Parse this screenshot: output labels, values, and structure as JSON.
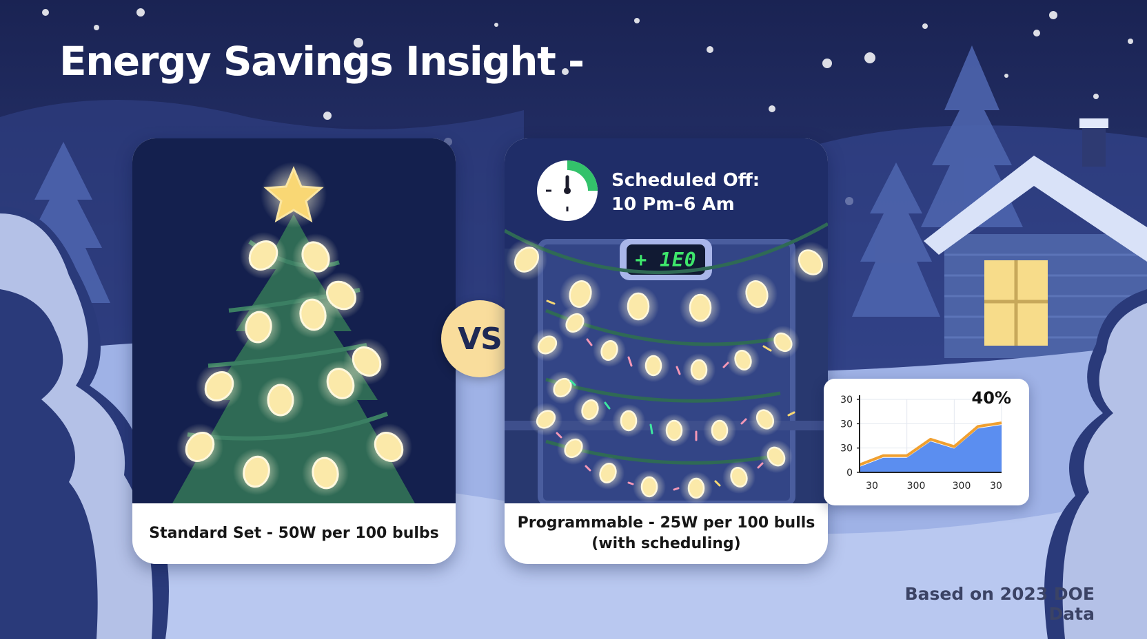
{
  "title": "Energy Savings Insight -",
  "vs_label": "VS",
  "standard_set": {
    "caption": "Standard Set - 50W per 100 bulbs"
  },
  "programmable_set": {
    "schedule_line1": "Scheduled Off:",
    "schedule_line2": "10 Pm–6 Am",
    "timer_display": "+ 1E0",
    "caption_line1": "Programmable - 25W per 100 bulls",
    "caption_line2": "(with scheduling)"
  },
  "source_note": "Based on 2023 DOE Data",
  "icons": [
    "star-icon",
    "clock-icon",
    "digital-timer-icon",
    "house-icon",
    "tree-icon"
  ],
  "colors": {
    "sky": "#1c2557",
    "snow": "#c9d5f4",
    "bulb_glow": "#fff3c2",
    "tree": "#2f6a55",
    "vs_badge": "#f9dd9c",
    "timer_digits": "#3ee66b",
    "chart_fill": "#5b8ef0",
    "chart_line": "#f0a030"
  },
  "chart_data": {
    "type": "area",
    "title": "",
    "highlight_label": "40%",
    "xlabel": "",
    "ylabel": "",
    "x_tick_labels": [
      "30",
      "300",
      "300",
      "30"
    ],
    "y_tick_labels": [
      "0",
      "30",
      "30",
      "30"
    ],
    "ylim": [
      0,
      40
    ],
    "grid": true,
    "series": [
      {
        "values": [
          3,
          8,
          8,
          17,
          13,
          24,
          26
        ]
      }
    ]
  }
}
